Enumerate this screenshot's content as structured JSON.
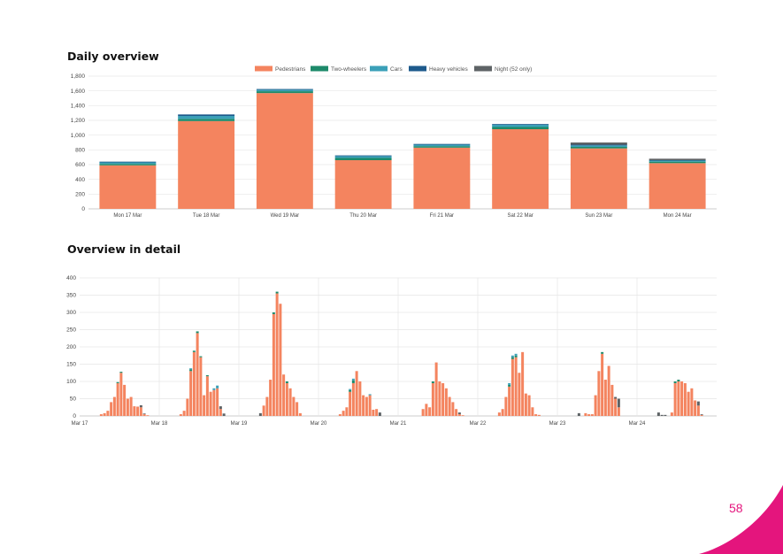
{
  "headings": {
    "daily": "Daily overview",
    "detail": "Overview in detail"
  },
  "page_number": "58",
  "colors": {
    "Pedestrians": "#f4845f",
    "Two-wheelers": "#1d8a6a",
    "Cars": "#3ba0b8",
    "Heavy vehicles": "#1d5a8c",
    "Night": "#5e6366",
    "accent": "#e4157d"
  },
  "chart_data": [
    {
      "type": "bar",
      "stacked": true,
      "title": "Daily overview",
      "categories": [
        "Mon 17 Mar",
        "Tue 18 Mar",
        "Wed 19 Mar",
        "Thu 20 Mar",
        "Fri 21 Mar",
        "Sat 22 Mar",
        "Sun 23 Mar",
        "Mon 24 Mar"
      ],
      "series": [
        {
          "name": "Pedestrians",
          "values": [
            590,
            1190,
            1570,
            660,
            830,
            1080,
            820,
            620
          ]
        },
        {
          "name": "Two-wheelers",
          "values": [
            20,
            30,
            25,
            30,
            20,
            30,
            20,
            20
          ]
        },
        {
          "name": "Cars",
          "values": [
            20,
            40,
            20,
            25,
            20,
            30,
            20,
            15
          ]
        },
        {
          "name": "Heavy vehicles",
          "values": [
            10,
            20,
            10,
            10,
            10,
            10,
            10,
            5
          ]
        },
        {
          "name": "Night",
          "values": [
            0,
            0,
            0,
            0,
            0,
            0,
            30,
            20
          ]
        }
      ],
      "legend_labels": [
        "Pedestrians",
        "Two-wheelers",
        "Cars",
        "Heavy vehicles",
        "Night (52 only)"
      ],
      "ylim": [
        0,
        1800
      ],
      "yticks": [
        "0",
        "200",
        "400",
        "600",
        "800",
        "1,000",
        "1,200",
        "1,400",
        "1,600",
        "1,800"
      ],
      "ytick_values": [
        0,
        200,
        400,
        600,
        800,
        1000,
        1200,
        1400,
        1600,
        1800
      ],
      "legend": "top-center"
    },
    {
      "type": "bar",
      "stacked": true,
      "title": "Overview in detail",
      "ylim": [
        0,
        400
      ],
      "yticks": [
        "0",
        "50",
        "100",
        "150",
        "200",
        "250",
        "300",
        "350",
        "400"
      ],
      "ytick_values": [
        0,
        50,
        100,
        150,
        200,
        250,
        300,
        350,
        400
      ],
      "xticks": [
        "Mar 17",
        "Mar 18",
        "Mar 19",
        "Mar 20",
        "Mar 21",
        "Mar 22",
        "Mar 23",
        "Mar 24"
      ],
      "hours_per_day": 24,
      "series_order": [
        "Pedestrians",
        "Two-wheelers",
        "Cars",
        "Night"
      ],
      "days": [
        {
          "ped": [
            0,
            0,
            0,
            0,
            0,
            0,
            5,
            8,
            15,
            40,
            55,
            95,
            125,
            90,
            50,
            55,
            28,
            27,
            25,
            5,
            2,
            0,
            0,
            0
          ],
          "two": [
            0,
            0,
            0,
            0,
            0,
            0,
            0,
            0,
            0,
            0,
            0,
            3,
            3,
            0,
            0,
            0,
            0,
            0,
            0,
            0,
            0,
            0,
            0,
            0
          ],
          "car": [
            0,
            0,
            0,
            0,
            0,
            0,
            0,
            0,
            0,
            0,
            0,
            0,
            0,
            0,
            0,
            0,
            0,
            0,
            0,
            0,
            0,
            0,
            0,
            0
          ],
          "night": [
            0,
            0,
            0,
            0,
            0,
            0,
            0,
            0,
            0,
            0,
            0,
            0,
            0,
            0,
            0,
            0,
            0,
            0,
            6,
            2,
            0,
            0,
            0,
            0
          ]
        },
        {
          "ped": [
            0,
            0,
            0,
            0,
            0,
            0,
            5,
            15,
            50,
            130,
            185,
            240,
            170,
            60,
            115,
            70,
            75,
            80,
            20,
            0,
            0,
            0,
            0,
            0
          ],
          "two": [
            0,
            0,
            0,
            0,
            0,
            0,
            0,
            0,
            0,
            5,
            4,
            5,
            3,
            0,
            3,
            0,
            0,
            0,
            0,
            0,
            0,
            0,
            0,
            0
          ],
          "car": [
            0,
            0,
            0,
            0,
            0,
            0,
            0,
            0,
            0,
            3,
            0,
            0,
            0,
            0,
            0,
            0,
            5,
            8,
            0,
            0,
            0,
            0,
            0,
            0
          ],
          "night": [
            0,
            0,
            0,
            0,
            0,
            0,
            0,
            0,
            0,
            0,
            0,
            0,
            0,
            0,
            0,
            0,
            0,
            0,
            8,
            7,
            0,
            0,
            0,
            0
          ]
        },
        {
          "ped": [
            0,
            0,
            0,
            0,
            0,
            0,
            0,
            30,
            55,
            105,
            295,
            355,
            325,
            120,
            95,
            80,
            55,
            40,
            8,
            0,
            0,
            0,
            0,
            0
          ],
          "two": [
            0,
            0,
            0,
            0,
            0,
            0,
            0,
            0,
            0,
            0,
            5,
            5,
            0,
            0,
            5,
            0,
            0,
            0,
            0,
            0,
            0,
            0,
            0,
            0
          ],
          "car": [
            0,
            0,
            0,
            0,
            0,
            0,
            0,
            0,
            0,
            0,
            0,
            0,
            0,
            0,
            0,
            0,
            0,
            0,
            0,
            0,
            0,
            0,
            0,
            0
          ],
          "night": [
            0,
            0,
            0,
            0,
            0,
            0,
            8,
            0,
            0,
            0,
            0,
            0,
            0,
            0,
            0,
            0,
            0,
            0,
            0,
            0,
            0,
            0,
            0,
            0
          ]
        },
        {
          "ped": [
            0,
            0,
            0,
            0,
            0,
            0,
            5,
            15,
            25,
            70,
            95,
            130,
            100,
            60,
            55,
            60,
            18,
            20,
            0,
            0,
            0,
            0,
            0,
            0
          ],
          "two": [
            0,
            0,
            0,
            0,
            0,
            0,
            0,
            0,
            0,
            5,
            8,
            0,
            0,
            0,
            0,
            0,
            0,
            0,
            0,
            0,
            0,
            0,
            0,
            0
          ],
          "car": [
            0,
            0,
            0,
            0,
            0,
            0,
            0,
            0,
            0,
            3,
            5,
            0,
            0,
            0,
            0,
            3,
            0,
            0,
            0,
            0,
            0,
            0,
            0,
            0
          ],
          "night": [
            0,
            0,
            0,
            0,
            0,
            0,
            0,
            0,
            0,
            0,
            0,
            0,
            0,
            0,
            0,
            0,
            0,
            0,
            10,
            0,
            0,
            0,
            0,
            0
          ]
        },
        {
          "ped": [
            0,
            0,
            0,
            0,
            0,
            0,
            0,
            20,
            35,
            25,
            95,
            155,
            100,
            95,
            80,
            55,
            40,
            20,
            5,
            2,
            0,
            0,
            0,
            0
          ],
          "two": [
            0,
            0,
            0,
            0,
            0,
            0,
            0,
            0,
            0,
            0,
            5,
            0,
            0,
            0,
            0,
            0,
            0,
            0,
            0,
            0,
            0,
            0,
            0,
            0
          ],
          "car": [
            0,
            0,
            0,
            0,
            0,
            0,
            0,
            0,
            0,
            0,
            0,
            0,
            0,
            0,
            0,
            0,
            0,
            0,
            0,
            0,
            0,
            0,
            0,
            0
          ],
          "night": [
            0,
            0,
            0,
            0,
            0,
            0,
            0,
            0,
            0,
            0,
            0,
            0,
            0,
            0,
            0,
            0,
            0,
            0,
            5,
            0,
            0,
            0,
            0,
            0
          ]
        },
        {
          "ped": [
            0,
            0,
            0,
            0,
            0,
            0,
            10,
            20,
            55,
            85,
            165,
            170,
            125,
            185,
            65,
            60,
            25,
            5,
            3,
            0,
            0,
            0,
            0,
            0
          ],
          "two": [
            0,
            0,
            0,
            0,
            0,
            0,
            0,
            0,
            0,
            5,
            5,
            5,
            0,
            0,
            0,
            0,
            0,
            0,
            0,
            0,
            0,
            0,
            0,
            0
          ],
          "car": [
            0,
            0,
            0,
            0,
            0,
            0,
            0,
            0,
            0,
            5,
            5,
            5,
            0,
            0,
            0,
            0,
            0,
            0,
            0,
            0,
            0,
            0,
            0,
            0
          ],
          "night": [
            0,
            0,
            0,
            0,
            0,
            0,
            0,
            0,
            0,
            0,
            0,
            0,
            0,
            0,
            0,
            0,
            0,
            0,
            0,
            0,
            0,
            0,
            0,
            0
          ]
        },
        {
          "ped": [
            0,
            0,
            0,
            0,
            0,
            0,
            0,
            0,
            8,
            5,
            5,
            60,
            130,
            180,
            105,
            145,
            90,
            50,
            25,
            0,
            0,
            0,
            0,
            0
          ],
          "two": [
            0,
            0,
            0,
            0,
            0,
            0,
            0,
            0,
            0,
            0,
            0,
            0,
            0,
            5,
            0,
            0,
            0,
            0,
            0,
            0,
            0,
            0,
            0,
            0
          ],
          "car": [
            0,
            0,
            0,
            0,
            0,
            0,
            0,
            0,
            0,
            0,
            0,
            0,
            0,
            0,
            0,
            0,
            0,
            0,
            0,
            0,
            0,
            0,
            0,
            0
          ],
          "night": [
            0,
            0,
            0,
            0,
            0,
            0,
            8,
            0,
            0,
            0,
            0,
            0,
            0,
            0,
            0,
            0,
            0,
            5,
            25,
            0,
            0,
            0,
            0,
            0
          ]
        },
        {
          "ped": [
            0,
            0,
            0,
            0,
            0,
            0,
            0,
            0,
            0,
            0,
            10,
            95,
            100,
            100,
            95,
            70,
            80,
            45,
            30,
            3,
            0,
            0,
            0,
            0
          ],
          "two": [
            0,
            0,
            0,
            0,
            0,
            0,
            0,
            0,
            0,
            0,
            0,
            5,
            5,
            0,
            0,
            0,
            0,
            0,
            0,
            0,
            0,
            0,
            0,
            0
          ],
          "car": [
            0,
            0,
            0,
            0,
            0,
            0,
            0,
            0,
            0,
            0,
            0,
            0,
            0,
            0,
            0,
            0,
            0,
            0,
            0,
            0,
            0,
            0,
            0,
            0
          ],
          "night": [
            0,
            0,
            0,
            0,
            0,
            0,
            10,
            3,
            3,
            0,
            0,
            0,
            0,
            0,
            0,
            0,
            0,
            0,
            12,
            2,
            0,
            0,
            0,
            0
          ]
        }
      ]
    }
  ]
}
